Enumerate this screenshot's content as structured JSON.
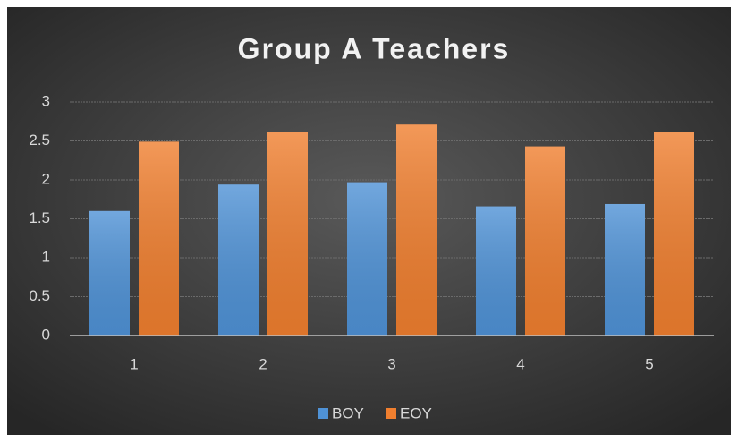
{
  "chart_data": {
    "type": "bar",
    "title": "Group A Teachers",
    "categories": [
      "1",
      "2",
      "3",
      "4",
      "5"
    ],
    "series": [
      {
        "name": "BOY",
        "color": "#4f92d6",
        "values": [
          1.6,
          1.94,
          1.97,
          1.66,
          1.69
        ]
      },
      {
        "name": "EOY",
        "color": "#f07f2f",
        "values": [
          2.49,
          2.61,
          2.71,
          2.43,
          2.62
        ]
      }
    ],
    "ylim": [
      0,
      3
    ],
    "yticks": [
      0,
      0.5,
      1,
      1.5,
      2,
      2.5,
      3
    ],
    "grid": true,
    "legend": "bottom"
  }
}
